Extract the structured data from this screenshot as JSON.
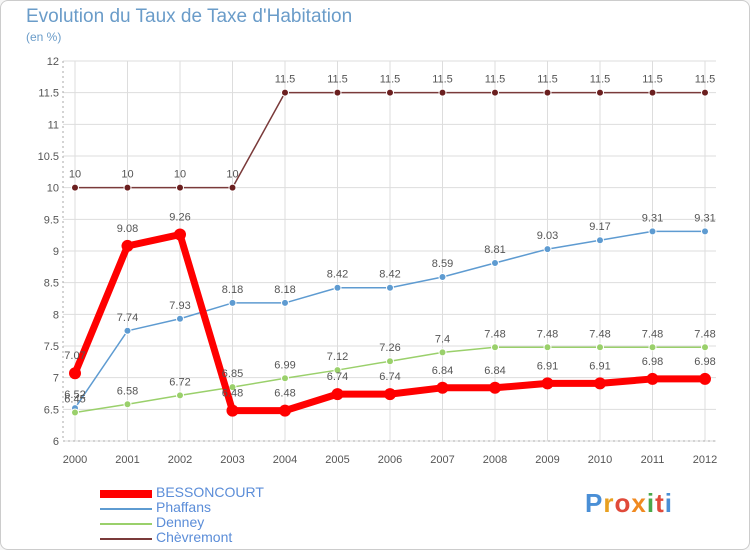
{
  "title": "Evolution du Taux de Taxe d'Habitation",
  "subtitle": "(en %)",
  "logo_text": "Proxiti",
  "chart_data": {
    "type": "line",
    "x": [
      "2000",
      "2001",
      "2002",
      "2003",
      "2004",
      "2005",
      "2006",
      "2007",
      "2008",
      "2009",
      "2010",
      "2011",
      "2012"
    ],
    "ylim": [
      6,
      12
    ],
    "yticks": [
      "6",
      "6.5",
      "7",
      "7.5",
      "8",
      "8.5",
      "9",
      "9.5",
      "10",
      "10.5",
      "11",
      "11.5",
      "12"
    ],
    "grid": true,
    "legend_position": "bottom-left",
    "series": [
      {
        "name": "BESSONCOURT",
        "color": "#ff0000",
        "width": 7,
        "radius": 6,
        "values": [
          7.07,
          9.08,
          9.26,
          6.48,
          6.48,
          6.74,
          6.74,
          6.84,
          6.84,
          6.91,
          6.91,
          6.98,
          6.98
        ],
        "labels": [
          "7.07",
          "9.08",
          "9.26",
          "6.48",
          "6.48",
          "6.74",
          "6.74",
          "6.84",
          "6.84",
          "6.91",
          "6.91",
          "6.98",
          "6.98"
        ]
      },
      {
        "name": "Phaffans",
        "color": "#5e9bd1",
        "width": 1.5,
        "radius": 3.5,
        "values": [
          6.52,
          7.74,
          7.93,
          8.18,
          8.18,
          8.42,
          8.42,
          8.59,
          8.81,
          9.03,
          9.17,
          9.31,
          9.31
        ],
        "labels": [
          "6.52",
          "7.74",
          "7.93",
          "8.18",
          "8.18",
          "8.42",
          "8.42",
          "8.59",
          "8.81",
          "9.03",
          "9.17",
          "9.31",
          "9.31"
        ]
      },
      {
        "name": "Denney",
        "color": "#9ad06b",
        "width": 1.5,
        "radius": 3.5,
        "values": [
          6.45,
          6.58,
          6.72,
          6.85,
          6.99,
          7.12,
          7.26,
          7.4,
          7.48,
          7.48,
          7.48,
          7.48,
          7.48
        ],
        "labels": [
          "6.45",
          "6.58",
          "6.72",
          "6.85",
          "6.99",
          "7.12",
          "7.26",
          "7.4",
          "7.48",
          "7.48",
          "7.48",
          "7.48",
          "7.48"
        ]
      },
      {
        "name": "Chèvremont",
        "color": "#7a3a3a",
        "width": 1.5,
        "radius": 3.5,
        "values": [
          10,
          10,
          10,
          10,
          11.5,
          11.5,
          11.5,
          11.5,
          11.5,
          11.5,
          11.5,
          11.5,
          11.5
        ],
        "labels": [
          "10",
          "10",
          "10",
          "10",
          "11.5",
          "11.5",
          "11.5",
          "11.5",
          "11.5",
          "11.5",
          "11.5",
          "11.5",
          "11.5"
        ]
      }
    ]
  }
}
